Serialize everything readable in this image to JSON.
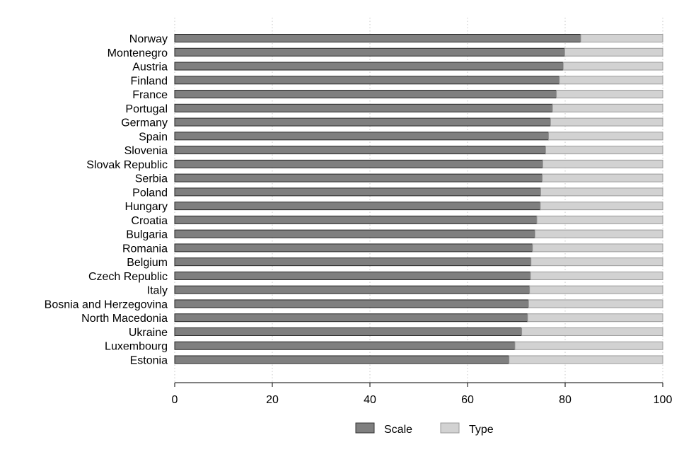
{
  "chart_data": {
    "type": "bar",
    "orientation": "horizontal",
    "stacked": true,
    "categories": [
      "Norway",
      "Montenegro",
      "Austria",
      "Finland",
      "France",
      "Portugal",
      "Germany",
      "Spain",
      "Slovenia",
      "Slovak Republic",
      "Serbia",
      "Poland",
      "Hungary",
      "Croatia",
      "Bulgaria",
      "Romania",
      "Belgium",
      "Czech Republic",
      "Italy",
      "Bosnia and Herzegovina",
      "North Macedonia",
      "Ukraine",
      "Luxembourg",
      "Estonia"
    ],
    "series": [
      {
        "name": "Scale",
        "color": "#7f7f7f",
        "values": [
          83.2,
          79.9,
          79.6,
          78.8,
          78.2,
          77.4,
          77.0,
          76.6,
          76.0,
          75.4,
          75.3,
          75.0,
          74.9,
          74.2,
          73.8,
          73.3,
          73.0,
          72.9,
          72.7,
          72.5,
          72.3,
          71.1,
          69.7,
          68.5
        ]
      },
      {
        "name": "Type",
        "color": "#d2d2d2",
        "values": [
          16.8,
          20.1,
          20.4,
          21.2,
          21.8,
          22.6,
          23.0,
          23.4,
          24.0,
          24.6,
          24.7,
          25.0,
          25.1,
          25.8,
          26.2,
          26.7,
          27.0,
          27.1,
          27.3,
          27.5,
          27.7,
          28.9,
          30.3,
          31.5
        ]
      }
    ],
    "xlim": [
      0,
      100
    ],
    "xticks": [
      "0",
      "20",
      "40",
      "60",
      "80",
      "100"
    ],
    "xtick_values": [
      0,
      20,
      40,
      60,
      80,
      100
    ],
    "grid": "vertical dotted",
    "legend_position": "bottom"
  }
}
